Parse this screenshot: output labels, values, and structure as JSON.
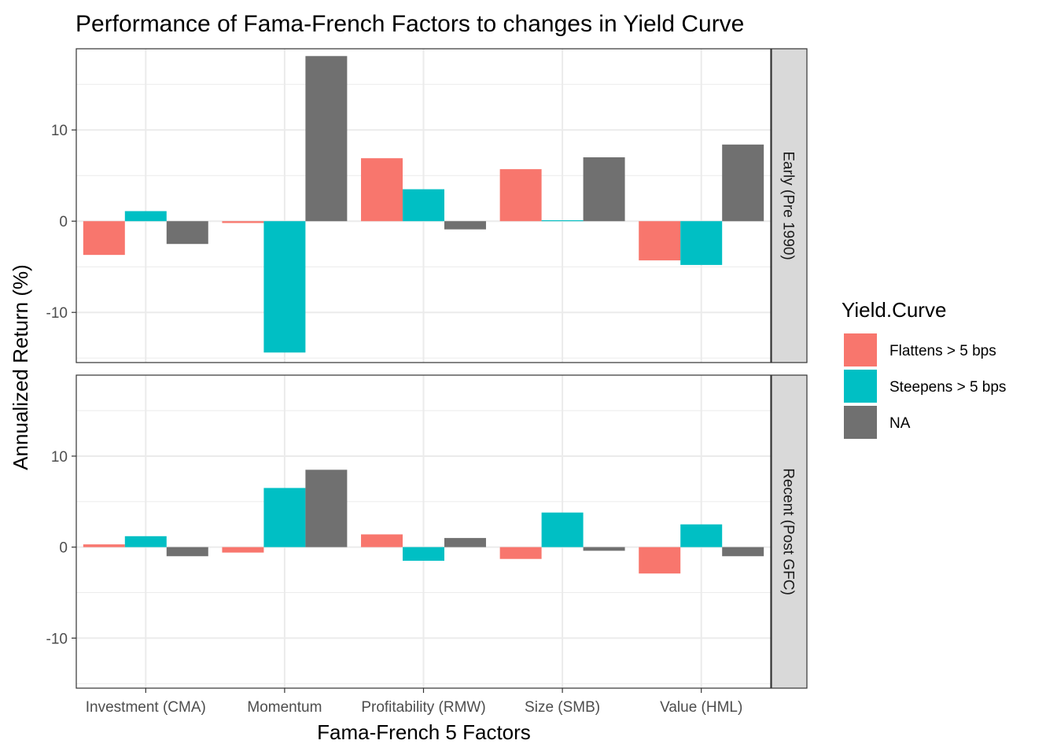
{
  "chart_data": {
    "type": "bar",
    "title": "Performance of Fama-French Factors to changes in Yield Curve",
    "xlabel": "Fama-French 5 Factors",
    "ylabel": "Annualized Return (%)",
    "categories": [
      "Investment (CMA)",
      "Momentum",
      "Profitability (RMW)",
      "Size (SMB)",
      "Value (HML)"
    ],
    "ylim": [
      -15.5,
      18.9
    ],
    "yticks": [
      -10,
      0,
      10
    ],
    "ytick_labels": [
      "-10",
      "0",
      "10"
    ],
    "grid": true,
    "legend": {
      "title": "Yield.Curve",
      "position": "right",
      "entries": [
        {
          "name": "Flattens > 5 bps",
          "color": "#F8766D"
        },
        {
          "name": "Steepens > 5 bps",
          "color": "#00BFC4"
        },
        {
          "name": "NA",
          "color": "#707070"
        }
      ]
    },
    "panels": [
      {
        "label": "Early (Pre 1990)",
        "series": [
          {
            "name": "Flattens > 5 bps",
            "values": [
              -3.7,
              -0.2,
              6.9,
              5.7,
              -4.3
            ]
          },
          {
            "name": "Steepens > 5 bps",
            "values": [
              1.1,
              -14.4,
              3.5,
              0.1,
              -4.8
            ]
          },
          {
            "name": "NA",
            "values": [
              -2.5,
              18.1,
              -0.9,
              7.0,
              8.4
            ]
          }
        ]
      },
      {
        "label": "Recent (Post GFC)",
        "series": [
          {
            "name": "Flattens > 5 bps",
            "values": [
              0.3,
              -0.6,
              1.4,
              -1.3,
              -2.9
            ]
          },
          {
            "name": "Steepens > 5 bps",
            "values": [
              1.2,
              6.5,
              -1.5,
              3.8,
              2.5
            ]
          },
          {
            "name": "NA",
            "values": [
              -1.0,
              8.5,
              1.0,
              -0.4,
              -1.0
            ]
          }
        ]
      }
    ]
  }
}
